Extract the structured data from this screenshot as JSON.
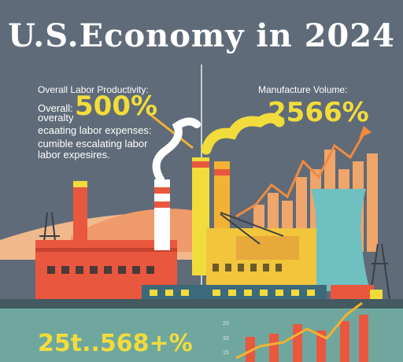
{
  "title": "U.S.Economy in 2024",
  "left_panel": {
    "heading": "Overall Labor Productivity:",
    "overall_label": "Overall:",
    "overall_value": "500%",
    "line2": "overalty",
    "line3": "ecaating labor expenses:",
    "line4": "cumible escalating labor",
    "line5": "labor expesires."
  },
  "right_panel": {
    "heading": "Manufacture Volume:",
    "value": "2566%"
  },
  "bottom": {
    "value": "25t..568+%",
    "ticks": [
      "20",
      "33",
      "15"
    ]
  },
  "colors": {
    "background": "#5f6b78",
    "accent_yellow": "#f2dc3c",
    "factory_red": "#e9573f",
    "bar_orange": "#f0a56a",
    "teal_ground": "#6fa79e"
  }
}
